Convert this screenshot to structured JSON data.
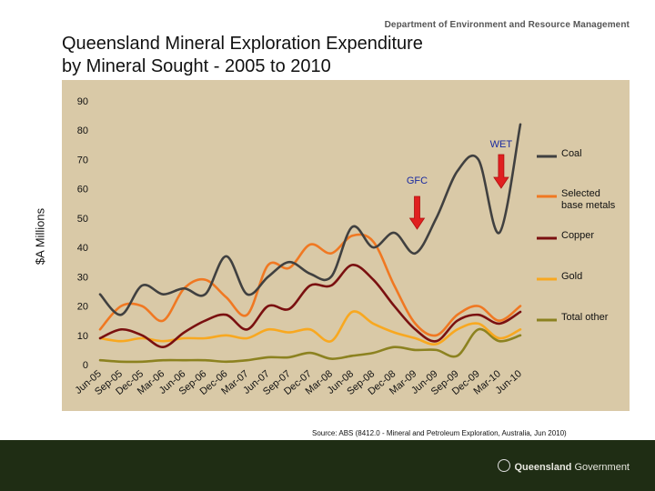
{
  "header": {
    "department": "Department of Environment and Resource Management",
    "title_line1": "Queensland Mineral Exploration Expenditure",
    "title_line2": "by Mineral Sought -  2005 to 2010"
  },
  "source_note": "Source: ABS (8412.0 - Mineral and Petroleum Exploration, Australia, Jun 2010)",
  "footer": {
    "logo_text_bold": "Queensland",
    "logo_text": " Government"
  },
  "colors": {
    "plot_bg": "#d9c9a7",
    "footer_bg": "#1f2d14",
    "annotation": "#e02020"
  },
  "chart_data": {
    "type": "line",
    "ylabel": "$A Millions",
    "ylim": [
      0,
      90
    ],
    "yticks": [
      0,
      10,
      20,
      30,
      40,
      50,
      60,
      70,
      80,
      90
    ],
    "grid": false,
    "legend_position": "right",
    "categories": [
      "Jun-05",
      "Sep-05",
      "Dec-05",
      "Mar-06",
      "Jun-06",
      "Sep-06",
      "Dec-06",
      "Mar-07",
      "Jun-07",
      "Sep-07",
      "Dec-07",
      "Mar-08",
      "Jun-08",
      "Sep-08",
      "Dec-08",
      "Mar-09",
      "Jun-09",
      "Sep-09",
      "Dec-09",
      "Mar-10",
      "Jun-10"
    ],
    "series": [
      {
        "name": "Coal",
        "color": "#404040",
        "values": [
          24,
          17,
          27,
          24,
          26,
          24,
          37,
          24,
          30,
          35,
          31,
          30,
          47,
          40,
          45,
          38,
          50,
          66,
          70,
          45,
          82
        ]
      },
      {
        "name": "Selected base metals",
        "color": "#f07822",
        "values": [
          12,
          20,
          20,
          15,
          26,
          29,
          23,
          17,
          34,
          33,
          41,
          38,
          44,
          42,
          27,
          14,
          10,
          17,
          20,
          15,
          20
        ]
      },
      {
        "name": "Copper",
        "color": "#7a1010",
        "values": [
          9,
          12,
          10,
          6,
          11,
          15,
          17,
          12,
          20,
          19,
          27,
          27,
          34,
          29,
          20,
          12,
          8,
          15,
          17,
          14,
          18
        ]
      },
      {
        "name": "Gold",
        "color": "#f8a820",
        "values": [
          9,
          8,
          9,
          8,
          9,
          9,
          10,
          9,
          12,
          11,
          12,
          8,
          18,
          14,
          11,
          9,
          7,
          12,
          14,
          9,
          12
        ]
      },
      {
        "name": "Total other",
        "color": "#8c8220",
        "values": [
          1.5,
          1,
          1,
          1.5,
          1.5,
          1.5,
          1,
          1.5,
          2.5,
          2.5,
          4,
          2,
          3,
          4,
          6,
          5,
          5,
          3,
          12,
          8,
          10
        ]
      }
    ],
    "annotations": [
      {
        "label": "GFC",
        "category": "Mar-09"
      },
      {
        "label": "WET",
        "category": "Mar-10"
      }
    ]
  }
}
